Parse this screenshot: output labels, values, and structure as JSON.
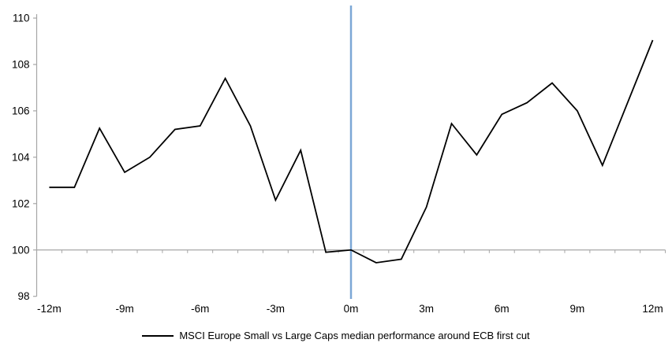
{
  "chart_data": {
    "type": "line",
    "title": "",
    "legend": "MSCI Europe Small vs Large Caps median performance around ECB first cut",
    "legend_position": "bottom-center",
    "grid": false,
    "xlim": [
      -12,
      12
    ],
    "ylim": [
      98,
      110
    ],
    "x_axis_at": 100,
    "x": [
      -12,
      -11,
      -10,
      -9,
      -8,
      -7,
      -6,
      -5,
      -4,
      -3,
      -2,
      -1,
      0,
      1,
      2,
      3,
      4,
      5,
      6,
      7,
      8,
      9,
      10,
      11,
      12
    ],
    "values": [
      102.7,
      102.7,
      105.25,
      103.35,
      104.0,
      105.2,
      105.35,
      107.4,
      105.35,
      102.15,
      104.3,
      99.9,
      100.0,
      99.45,
      99.6,
      101.85,
      105.45,
      104.1,
      105.85,
      106.35,
      107.2,
      106.0,
      103.65,
      106.35,
      109.05
    ],
    "yticks": [
      110,
      108,
      106,
      104,
      102,
      100,
      98
    ],
    "xticks": [
      {
        "label": "-12m",
        "month": -12
      },
      {
        "label": "-9m",
        "month": -9
      },
      {
        "label": "-6m",
        "month": -6
      },
      {
        "label": "-3m",
        "month": -3
      },
      {
        "label": "0m",
        "month": 0
      },
      {
        "label": "3m",
        "month": 3
      },
      {
        "label": "6m",
        "month": 6
      },
      {
        "label": "9m",
        "month": 9
      },
      {
        "label": "12m",
        "month": 12
      }
    ],
    "event_line_at_month": 0,
    "colors": {
      "series": "#000000",
      "event_line": "#7CA7D6",
      "axis": "#A6A6A6",
      "text": "#000000"
    }
  }
}
